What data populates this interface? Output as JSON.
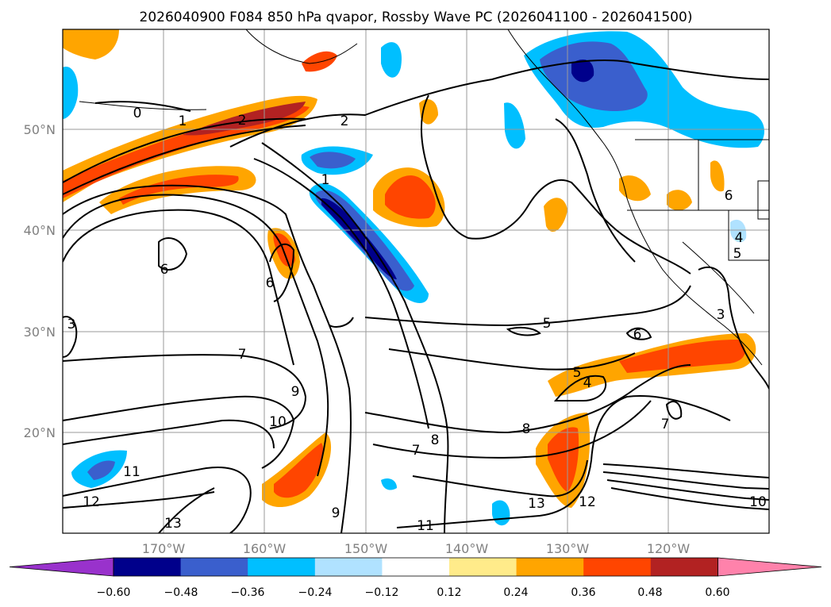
{
  "title": "2026040900 F084 850 hPa qvapor, Rossby Wave PC (2026041100 - 2026041500)",
  "map": {
    "lat_ticks": [
      "50°N",
      "40°N",
      "30°N",
      "20°N"
    ],
    "lon_ticks": [
      "170°W",
      "160°W",
      "150°W",
      "140°W",
      "130°W",
      "120°W"
    ],
    "grid": true,
    "contour_labels": [
      "0",
      "1",
      "2",
      "2",
      "1",
      "6",
      "6",
      "3",
      "7",
      "9",
      "10",
      "11",
      "12",
      "13",
      "9",
      "11",
      "13",
      "12",
      "10",
      "8",
      "8",
      "7",
      "5",
      "6",
      "5",
      "4",
      "7",
      "6",
      "4",
      "5",
      "3"
    ]
  },
  "colorbar": {
    "ticks": [
      "−0.60",
      "−0.48",
      "−0.36",
      "−0.24",
      "−0.12",
      "0.12",
      "0.24",
      "0.36",
      "0.48",
      "0.60"
    ],
    "colors": [
      "#9932cc",
      "#00008b",
      "#3a5fcd",
      "#00bfff",
      "#b0e2ff",
      "#ffffff",
      "#ffeb8a",
      "#ffa500",
      "#ff4500",
      "#b22222",
      "#ff82ab"
    ],
    "extend": "both"
  }
}
